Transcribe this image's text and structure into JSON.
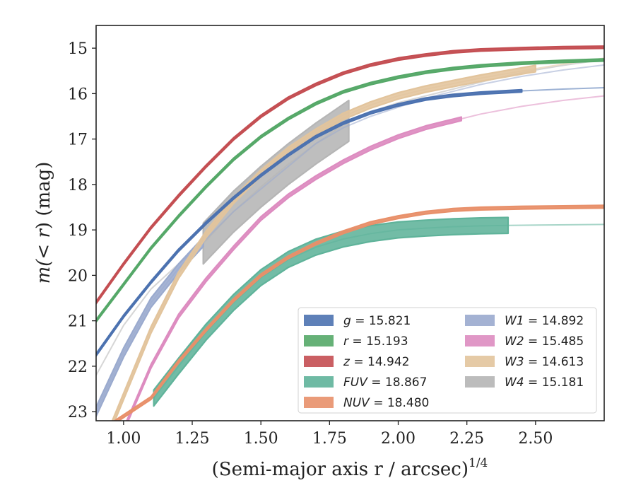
{
  "chart_data": {
    "type": "line",
    "xlabel": "(Semi-major axis r / arcsec)",
    "xlabel_exponent": "1/4",
    "ylabel_prefix": "m(",
    "ylabel_var": "< r",
    "ylabel_suffix": ") (mag)",
    "xlim": [
      0.9,
      2.75
    ],
    "ylim": [
      23.2,
      14.5
    ],
    "y_inverted": true,
    "xticks": [
      1.0,
      1.25,
      1.5,
      1.75,
      2.0,
      2.25,
      2.5
    ],
    "xtick_labels": [
      "1.00",
      "1.25",
      "1.50",
      "1.75",
      "2.00",
      "2.25",
      "2.50"
    ],
    "yticks": [
      15,
      16,
      17,
      18,
      19,
      20,
      21,
      22,
      23
    ],
    "ytick_labels": [
      "15",
      "16",
      "17",
      "18",
      "19",
      "20",
      "21",
      "22",
      "23"
    ],
    "grid": false,
    "legend_placement": "lower-right",
    "series": [
      {
        "name": "g = 15.821",
        "var": "g",
        "value": "15.821",
        "color": "#4c72b0",
        "x": [
          0.9,
          1.0,
          1.1,
          1.2,
          1.3,
          1.4,
          1.5,
          1.6,
          1.7,
          1.8,
          1.9,
          2.0,
          2.1,
          2.2,
          2.3,
          2.45,
          2.6,
          2.75
        ],
        "y": [
          21.75,
          20.9,
          20.15,
          19.45,
          18.85,
          18.3,
          17.8,
          17.35,
          16.95,
          16.65,
          16.42,
          16.25,
          16.12,
          16.04,
          15.99,
          15.94,
          15.9,
          15.87
        ],
        "solid_until": 2.45,
        "band": 0.05
      },
      {
        "name": "r = 15.193",
        "var": "r",
        "value": "15.193",
        "color": "#55a868",
        "x": [
          0.9,
          1.0,
          1.1,
          1.2,
          1.3,
          1.4,
          1.5,
          1.6,
          1.7,
          1.8,
          1.9,
          2.0,
          2.1,
          2.2,
          2.3,
          2.45,
          2.6,
          2.75
        ],
        "y": [
          21.0,
          20.2,
          19.4,
          18.7,
          18.05,
          17.45,
          16.95,
          16.55,
          16.22,
          15.96,
          15.78,
          15.64,
          15.53,
          15.45,
          15.39,
          15.33,
          15.29,
          15.26
        ],
        "solid_until": 2.75,
        "band": 0.05
      },
      {
        "name": "z = 14.942",
        "var": "z",
        "value": "14.942",
        "color": "#c44e52",
        "x": [
          0.9,
          1.0,
          1.1,
          1.2,
          1.3,
          1.4,
          1.5,
          1.6,
          1.7,
          1.8,
          1.9,
          2.0,
          2.1,
          2.2,
          2.3,
          2.45,
          2.6,
          2.75
        ],
        "y": [
          20.6,
          19.75,
          18.95,
          18.25,
          17.6,
          17.0,
          16.5,
          16.1,
          15.8,
          15.55,
          15.37,
          15.24,
          15.15,
          15.08,
          15.04,
          15.01,
          14.99,
          14.98
        ],
        "solid_until": 2.75,
        "band": 0.05
      },
      {
        "name": "FUV = 18.867",
        "var": "FUV",
        "value": "18.867",
        "color": "#5fb39a",
        "x": [
          1.11,
          1.2,
          1.3,
          1.4,
          1.5,
          1.6,
          1.7,
          1.8,
          1.9,
          2.0,
          2.1,
          2.2,
          2.3,
          2.4,
          2.55,
          2.75
        ],
        "y": [
          22.7,
          22.0,
          21.25,
          20.6,
          20.05,
          19.65,
          19.38,
          19.2,
          19.08,
          19.0,
          18.96,
          18.93,
          18.91,
          18.9,
          18.89,
          18.88
        ],
        "solid_until": 2.4,
        "band": 0.35
      },
      {
        "name": "NUV = 18.480",
        "var": "NUV",
        "value": "18.480",
        "color": "#e8906a",
        "x": [
          0.95,
          1.1,
          1.2,
          1.3,
          1.4,
          1.5,
          1.6,
          1.7,
          1.8,
          1.9,
          2.0,
          2.1,
          2.2,
          2.3,
          2.45,
          2.6,
          2.75
        ],
        "y": [
          23.3,
          22.7,
          21.9,
          21.2,
          20.55,
          20.0,
          19.6,
          19.3,
          19.05,
          18.85,
          18.72,
          18.62,
          18.56,
          18.53,
          18.51,
          18.5,
          18.49
        ],
        "solid_until": 2.75,
        "band": 0.06
      },
      {
        "name": "W1 = 14.892",
        "var": "W1",
        "value": "14.892",
        "color": "#9aaace",
        "x": [
          0.9,
          1.0,
          1.1,
          1.2,
          1.3,
          1.4,
          1.5,
          1.6,
          1.7,
          1.8,
          1.9,
          2.0,
          2.1,
          2.2,
          2.3,
          2.45,
          2.6,
          2.75
        ],
        "y": [
          23.0,
          21.7,
          20.6,
          19.85,
          19.2,
          18.6,
          18.1,
          17.6,
          17.1,
          16.75,
          16.5,
          16.3,
          16.1,
          15.95,
          15.8,
          15.62,
          15.48,
          15.37
        ],
        "solid_until": 1.29,
        "band": 0.2
      },
      {
        "name": "W2 = 15.485",
        "var": "W2",
        "value": "15.485",
        "color": "#dd8cc0",
        "x": [
          1.0,
          1.1,
          1.2,
          1.3,
          1.4,
          1.5,
          1.6,
          1.7,
          1.8,
          1.9,
          2.0,
          2.1,
          2.2,
          2.3,
          2.45,
          2.6,
          2.75
        ],
        "y": [
          23.4,
          22.0,
          20.9,
          20.1,
          19.4,
          18.75,
          18.25,
          17.85,
          17.5,
          17.2,
          16.95,
          16.75,
          16.6,
          16.45,
          16.28,
          16.15,
          16.05
        ],
        "solid_until": 2.23,
        "band": 0.08
      },
      {
        "name": "W3 = 14.613",
        "var": "W3",
        "value": "14.613",
        "color": "#e2c49c",
        "x": [
          0.95,
          1.1,
          1.2,
          1.3,
          1.4,
          1.5,
          1.6,
          1.7,
          1.8,
          1.9,
          2.0,
          2.1,
          2.2,
          2.3,
          2.45,
          2.6,
          2.75
        ],
        "y": [
          23.4,
          21.2,
          20.0,
          19.1,
          18.35,
          17.75,
          17.25,
          16.85,
          16.5,
          16.25,
          16.05,
          15.9,
          15.78,
          15.66,
          15.5,
          15.35,
          15.22
        ],
        "solid_until": 2.5,
        "band": 0.14
      },
      {
        "name": "W4 = 15.181",
        "var": "W4",
        "value": "15.181",
        "color": "#b5b5b5",
        "x": [
          0.9,
          1.0,
          1.1,
          1.2,
          1.29,
          1.4,
          1.5,
          1.6,
          1.7,
          1.82,
          1.9,
          2.0,
          2.1,
          2.2,
          2.3,
          2.4,
          2.5,
          2.6,
          2.75
        ],
        "y": [
          22.2,
          21.1,
          20.3,
          19.75,
          19.3,
          18.6,
          18.05,
          17.55,
          17.1,
          16.6,
          16.4,
          16.2,
          16.05,
          15.9,
          15.75,
          15.6,
          15.48,
          15.38,
          15.25
        ],
        "solid_from": 1.29,
        "solid_until": 1.82,
        "band": 0.9
      }
    ]
  }
}
